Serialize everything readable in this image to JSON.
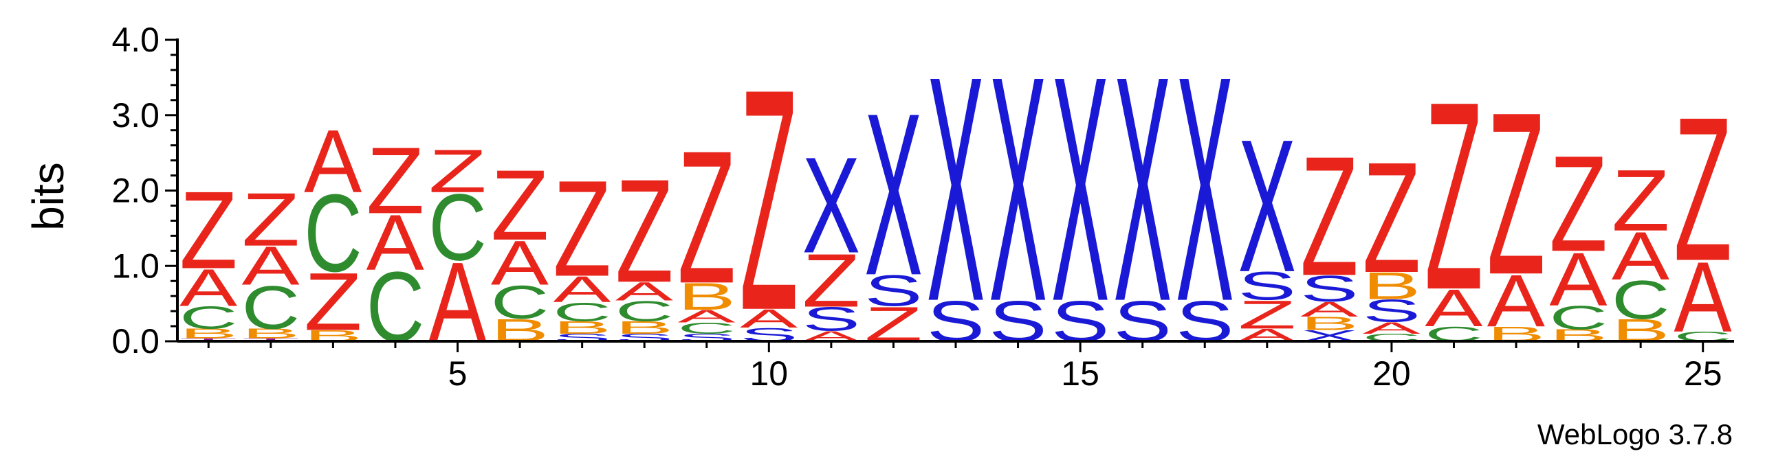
{
  "chart_data": {
    "type": "sequence-logo",
    "ylabel": "bits",
    "ylim": [
      0,
      4.0
    ],
    "y_ticks": [
      "0.0",
      "1.0",
      "2.0",
      "3.0",
      "4.0"
    ],
    "x_ticks": [
      "5",
      "10",
      "15",
      "20",
      "25"
    ],
    "x_tick_positions": [
      5,
      10,
      15,
      20,
      25
    ],
    "positions": [
      1,
      25
    ],
    "colors": {
      "A": "#e8241b",
      "Z": "#e8241b",
      "C": "#2e8b2e",
      "B": "#f08c00",
      "S": "#1a1ad6",
      "X": "#1a1ad6",
      "T": "#8b1a8b"
    },
    "stacks": [
      [
        [
          "T",
          0.04
        ],
        [
          "B",
          0.13
        ],
        [
          "C",
          0.3
        ],
        [
          "A",
          0.5
        ],
        [
          "Z",
          1.05
        ]
      ],
      [
        [
          "T",
          0.04
        ],
        [
          "B",
          0.13
        ],
        [
          "C",
          0.58
        ],
        [
          "A",
          0.52
        ],
        [
          "Z",
          0.72
        ]
      ],
      [
        [
          "B",
          0.15
        ],
        [
          "Z",
          0.78
        ],
        [
          "C",
          1.05
        ],
        [
          "A",
          0.85
        ]
      ],
      [
        [
          "C",
          0.95
        ],
        [
          "A",
          0.75
        ],
        [
          "Z",
          0.9
        ]
      ],
      [
        [
          "A",
          1.08
        ],
        [
          "C",
          0.9
        ],
        [
          "Z",
          0.58
        ]
      ],
      [
        [
          "B",
          0.3
        ],
        [
          "C",
          0.45
        ],
        [
          "A",
          0.6
        ],
        [
          "Z",
          0.95
        ]
      ],
      [
        [
          "S",
          0.1
        ],
        [
          "B",
          0.17
        ],
        [
          "C",
          0.25
        ],
        [
          "A",
          0.35
        ],
        [
          "Z",
          1.3
        ]
      ],
      [
        [
          "S",
          0.1
        ],
        [
          "B",
          0.17
        ],
        [
          "C",
          0.27
        ],
        [
          "A",
          0.25
        ],
        [
          "Z",
          1.4
        ]
      ],
      [
        [
          "S",
          0.1
        ],
        [
          "C",
          0.15
        ],
        [
          "A",
          0.17
        ],
        [
          "B",
          0.36
        ],
        [
          "Z",
          1.8
        ]
      ],
      [
        [
          "S",
          0.18
        ],
        [
          "A",
          0.25
        ],
        [
          "Z",
          3.0
        ]
      ],
      [
        [
          "A",
          0.14
        ],
        [
          "S",
          0.32
        ],
        [
          "Z",
          0.72
        ],
        [
          "X",
          1.3
        ]
      ],
      [
        [
          "Z",
          0.47
        ],
        [
          "S",
          0.42
        ],
        [
          "X",
          2.2
        ]
      ],
      [
        [
          "S",
          0.55
        ],
        [
          "X",
          3.05
        ]
      ],
      [
        [
          "S",
          0.55
        ],
        [
          "X",
          3.05
        ]
      ],
      [
        [
          "S",
          0.55
        ],
        [
          "X",
          3.05
        ]
      ],
      [
        [
          "S",
          0.55
        ],
        [
          "X",
          3.05
        ]
      ],
      [
        [
          "S",
          0.55
        ],
        [
          "X",
          3.05
        ]
      ],
      [
        [
          "A",
          0.17
        ],
        [
          "Z",
          0.38
        ],
        [
          "S",
          0.38
        ],
        [
          "X",
          1.8
        ]
      ],
      [
        [
          "X",
          0.15
        ],
        [
          "B",
          0.18
        ],
        [
          "A",
          0.2
        ],
        [
          "S",
          0.35
        ],
        [
          "Z",
          1.62
        ]
      ],
      [
        [
          "C",
          0.1
        ],
        [
          "A",
          0.16
        ],
        [
          "S",
          0.3
        ],
        [
          "B",
          0.36
        ],
        [
          "Z",
          1.5
        ]
      ],
      [
        [
          "C",
          0.2
        ],
        [
          "A",
          0.5
        ],
        [
          "Z",
          2.55
        ]
      ],
      [
        [
          "B",
          0.2
        ],
        [
          "A",
          0.7
        ],
        [
          "Z",
          2.2
        ]
      ],
      [
        [
          "B",
          0.16
        ],
        [
          "C",
          0.32
        ],
        [
          "A",
          0.72
        ],
        [
          "Z",
          1.3
        ]
      ],
      [
        [
          "B",
          0.3
        ],
        [
          "C",
          0.52
        ],
        [
          "A",
          0.65
        ],
        [
          "Z",
          0.83
        ]
      ],
      [
        [
          "C",
          0.13
        ],
        [
          "A",
          0.95
        ],
        [
          "Z",
          1.95
        ]
      ]
    ]
  },
  "footer": {
    "version_label": "WebLogo 3.7.8"
  }
}
